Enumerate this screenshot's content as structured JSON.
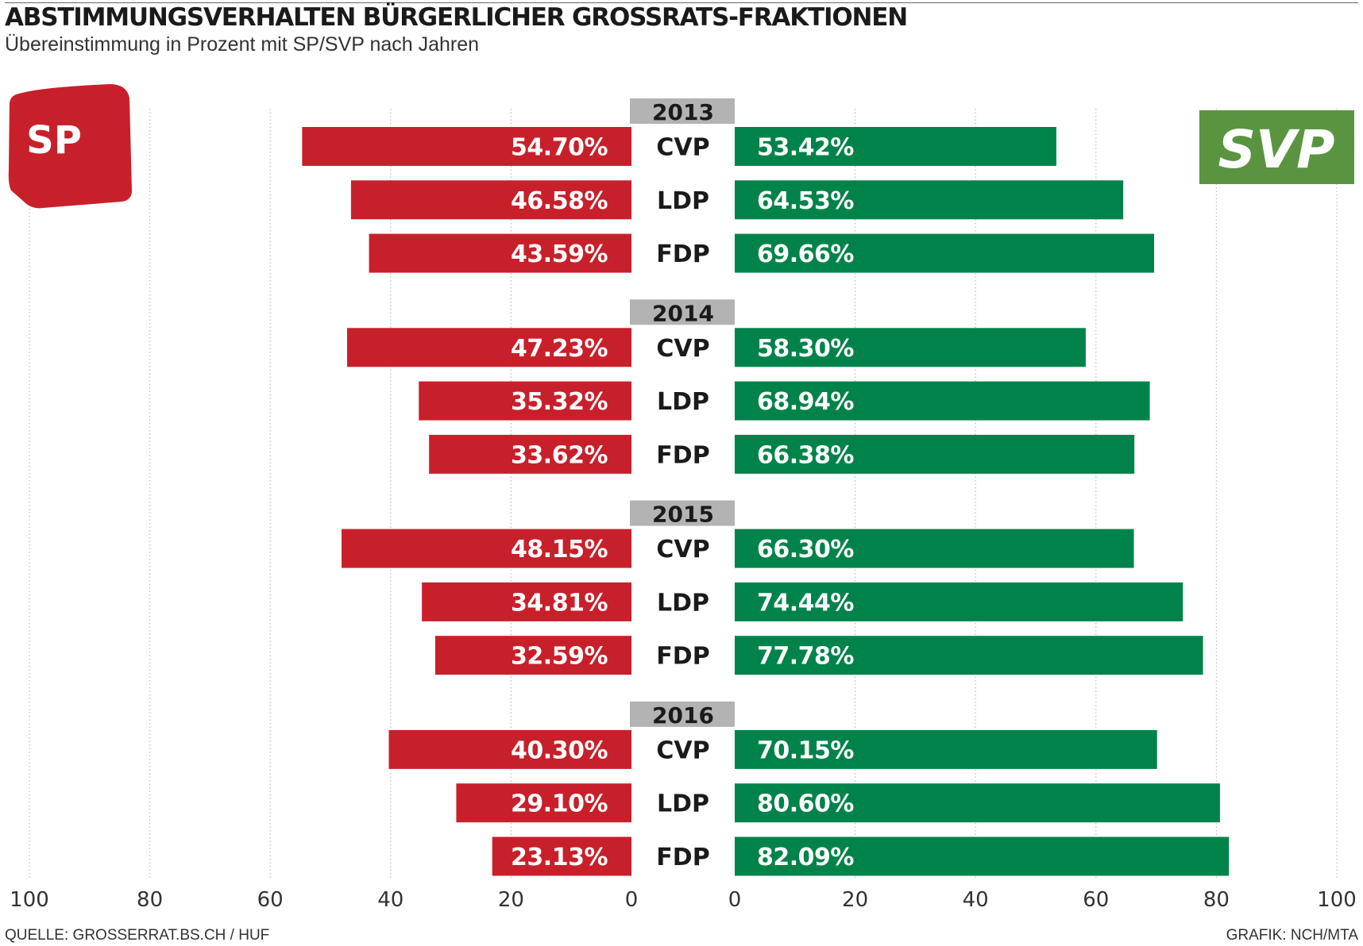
{
  "header": {
    "title": "ABSTIMMUNGSVERHALTEN BÜRGERLICHER GROSSRATS-FRAKTIONEN",
    "subtitle": "Übereinstimmung in Prozent mit SP/SVP nach Jahren"
  },
  "logos": {
    "left": "SP",
    "right": "SVP"
  },
  "footer": {
    "source": "QUELLE: GROSSERRAT.BS.CH / HUF",
    "credit": "GRAFIK: NCH/MTA"
  },
  "colors": {
    "sp": "#c8202b",
    "svp": "#00834a",
    "svp_logo": "#5a9440",
    "year_box": "#b3b3b3"
  },
  "chart_data": {
    "type": "bar",
    "orientation": "horizontal-diverging",
    "title": "ABSTIMMUNGSVERHALTEN BÜRGERLICHER GROSSRATS-FRAKTIONEN",
    "subtitle": "Übereinstimmung in Prozent mit SP/SVP nach Jahren",
    "left_axis": {
      "ticks": [
        100,
        80,
        60,
        40,
        20,
        0
      ],
      "range": [
        0,
        100
      ]
    },
    "right_axis": {
      "ticks": [
        0,
        20,
        40,
        60,
        80,
        100
      ],
      "range": [
        0,
        100
      ]
    },
    "grid": true,
    "series": [
      {
        "name": "SP",
        "side": "left"
      },
      {
        "name": "SVP",
        "side": "right"
      }
    ],
    "groups": [
      {
        "year": "2013",
        "rows": [
          {
            "party": "CVP",
            "sp": 54.7,
            "sp_label": "54.70%",
            "svp": 53.42,
            "svp_label": "53.42%"
          },
          {
            "party": "LDP",
            "sp": 46.58,
            "sp_label": "46.58%",
            "svp": 64.53,
            "svp_label": "64.53%"
          },
          {
            "party": "FDP",
            "sp": 43.59,
            "sp_label": "43.59%",
            "svp": 69.66,
            "svp_label": "69.66%"
          }
        ]
      },
      {
        "year": "2014",
        "rows": [
          {
            "party": "CVP",
            "sp": 47.23,
            "sp_label": "47.23%",
            "svp": 58.3,
            "svp_label": "58.30%"
          },
          {
            "party": "LDP",
            "sp": 35.32,
            "sp_label": "35.32%",
            "svp": 68.94,
            "svp_label": "68.94%"
          },
          {
            "party": "FDP",
            "sp": 33.62,
            "sp_label": "33.62%",
            "svp": 66.38,
            "svp_label": "66.38%"
          }
        ]
      },
      {
        "year": "2015",
        "rows": [
          {
            "party": "CVP",
            "sp": 48.15,
            "sp_label": "48.15%",
            "svp": 66.3,
            "svp_label": "66.30%"
          },
          {
            "party": "LDP",
            "sp": 34.81,
            "sp_label": "34.81%",
            "svp": 74.44,
            "svp_label": "74.44%"
          },
          {
            "party": "FDP",
            "sp": 32.59,
            "sp_label": "32.59%",
            "svp": 77.78,
            "svp_label": "77.78%"
          }
        ]
      },
      {
        "year": "2016",
        "rows": [
          {
            "party": "CVP",
            "sp": 40.3,
            "sp_label": "40.30%",
            "svp": 70.15,
            "svp_label": "70.15%"
          },
          {
            "party": "LDP",
            "sp": 29.1,
            "sp_label": "29.10%",
            "svp": 80.6,
            "svp_label": "80.60%"
          },
          {
            "party": "FDP",
            "sp": 23.13,
            "sp_label": "23.13%",
            "svp": 82.09,
            "svp_label": "82.09%"
          }
        ]
      }
    ]
  }
}
